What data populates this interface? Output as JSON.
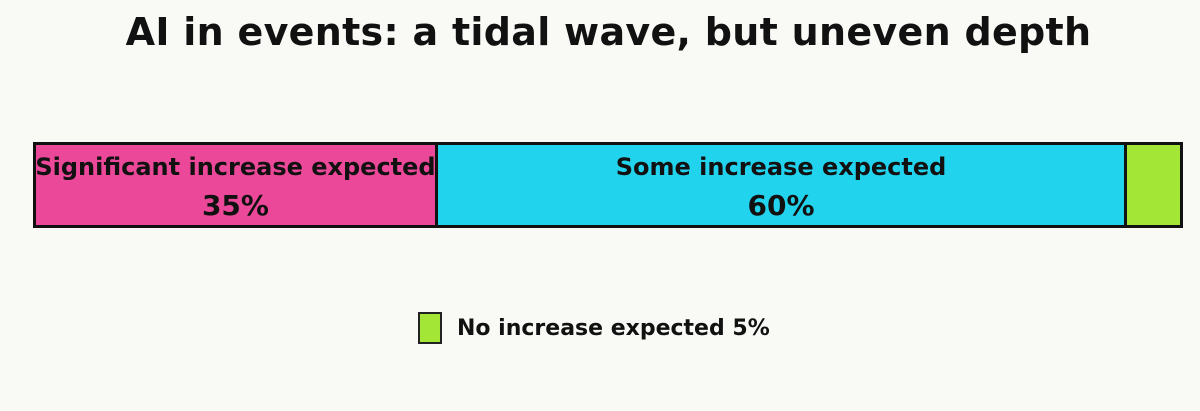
{
  "title": "AI in events: a tidal wave, but uneven depth",
  "chart_data": {
    "type": "bar",
    "orientation": "horizontal-stacked",
    "title": "AI in events: a tidal wave, but uneven depth",
    "categories": [
      "Significant increase expected",
      "Some increase expected",
      "No increase expected"
    ],
    "values": [
      35,
      60,
      5
    ],
    "unit": "%",
    "colors": [
      "#ec4899",
      "#22d3ee",
      "#a3e635"
    ],
    "xlabel": "",
    "ylabel": "",
    "grid": false,
    "legend": {
      "position": "bottom",
      "entries": [
        "No increase expected 5%"
      ]
    }
  },
  "segments": [
    {
      "label": "Significant increase expected",
      "value": "35%",
      "pct": 35,
      "color": "#ec4899"
    },
    {
      "label": "Some increase expected",
      "value": "60%",
      "pct": 60,
      "color": "#22d3ee"
    },
    {
      "label": "",
      "value": "",
      "pct": 5,
      "color": "#a3e635"
    }
  ],
  "legend": {
    "label": "No increase expected 5%",
    "color": "#a3e635"
  }
}
